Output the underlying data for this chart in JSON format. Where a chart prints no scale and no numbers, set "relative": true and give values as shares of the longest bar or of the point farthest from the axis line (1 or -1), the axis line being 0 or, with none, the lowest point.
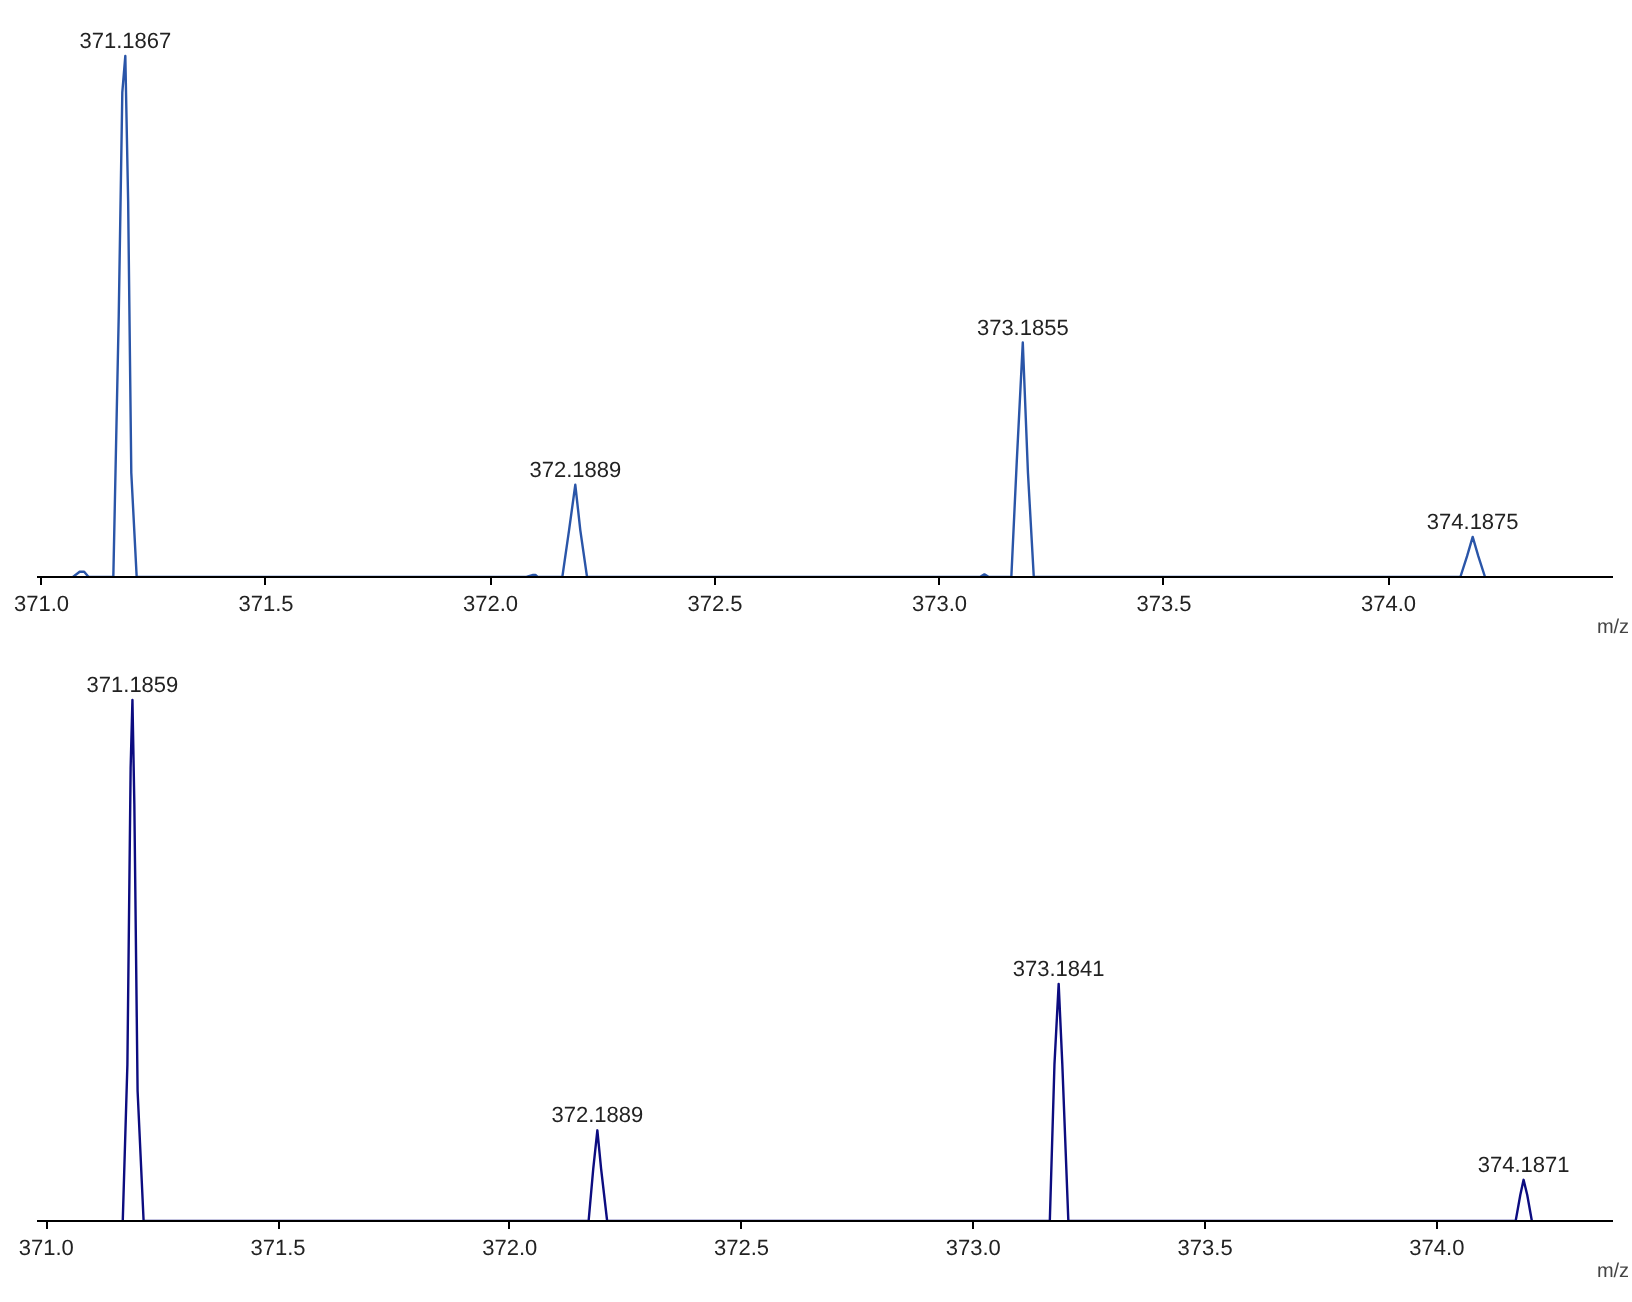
{
  "chart_data": [
    {
      "type": "line",
      "relative": true,
      "xlabel": "m/z",
      "xlim": [
        370.99,
        374.5
      ],
      "xticks": [
        {
          "value": 371.0,
          "label": "371.0"
        },
        {
          "value": 371.5,
          "label": "371.5"
        },
        {
          "value": 372.0,
          "label": "372.0"
        },
        {
          "value": 372.5,
          "label": "372.5"
        },
        {
          "value": 373.0,
          "label": "373.0"
        },
        {
          "value": 373.5,
          "label": "373.5"
        },
        {
          "value": 374.0,
          "label": "374.0"
        }
      ],
      "tick_labels": "x",
      "grid": false,
      "marker": "none",
      "line_style": "solid",
      "series": [
        {
          "color": "#2a55a8",
          "x": [
            371.07,
            371.085,
            371.095,
            371.105,
            371.16,
            371.172,
            371.18,
            371.1867,
            371.193,
            371.2,
            371.212,
            372.08,
            372.095,
            372.1,
            372.105,
            372.16,
            372.175,
            372.1889,
            372.2,
            372.215,
            373.09,
            373.1,
            373.11,
            373.16,
            373.172,
            373.1855,
            373.197,
            373.21,
            374.16,
            374.175,
            374.1875,
            374.2,
            374.215
          ],
          "values": [
            0,
            0.01,
            0.01,
            0,
            0,
            0.5,
            0.93,
            1.0,
            0.72,
            0.2,
            0,
            0,
            0.004,
            0.004,
            0,
            0,
            0.09,
            0.177,
            0.09,
            0,
            0,
            0.005,
            0,
            0,
            0.22,
            0.45,
            0.2,
            0,
            0,
            0.04,
            0.077,
            0.04,
            0
          ]
        }
      ],
      "annotations": [
        {
          "text": "371.1867",
          "x": 371.1867,
          "y": 1.0
        },
        {
          "text": "372.1889",
          "x": 372.1889,
          "y": 0.177
        },
        {
          "text": "373.1855",
          "x": 373.1855,
          "y": 0.45
        },
        {
          "text": "374.1875",
          "x": 374.1875,
          "y": 0.077
        }
      ]
    },
    {
      "type": "line",
      "relative": true,
      "xlabel": "m/z",
      "xlim": [
        370.98,
        374.38
      ],
      "xticks": [
        {
          "value": 371.0,
          "label": "371.0"
        },
        {
          "value": 371.5,
          "label": "371.5"
        },
        {
          "value": 372.0,
          "label": "372.0"
        },
        {
          "value": 372.5,
          "label": "372.5"
        },
        {
          "value": 373.0,
          "label": "373.0"
        },
        {
          "value": 373.5,
          "label": "373.5"
        },
        {
          "value": 374.0,
          "label": "374.0"
        }
      ],
      "tick_labels": "x",
      "grid": false,
      "marker": "none",
      "line_style": "solid",
      "series": [
        {
          "color": "#0c0c80",
          "x": [
            371.165,
            371.175,
            371.182,
            371.1859,
            371.19,
            371.197,
            371.21,
            372.17,
            372.18,
            372.1889,
            372.197,
            372.21,
            373.165,
            373.175,
            373.1841,
            373.192,
            373.205,
            374.17,
            374.18,
            374.1871,
            374.195,
            374.205
          ],
          "values": [
            0,
            0.3,
            0.87,
            1.0,
            0.8,
            0.25,
            0,
            0,
            0.1,
            0.174,
            0.1,
            0,
            0,
            0.3,
            0.455,
            0.3,
            0,
            0,
            0.05,
            0.079,
            0.05,
            0
          ]
        }
      ],
      "annotations": [
        {
          "text": "371.1859",
          "x": 371.1859,
          "y": 1.0
        },
        {
          "text": "372.1889",
          "x": 372.1889,
          "y": 0.174
        },
        {
          "text": "373.1841",
          "x": 373.1841,
          "y": 0.455
        },
        {
          "text": "374.1871",
          "x": 374.1871,
          "y": 0.079
        }
      ]
    }
  ]
}
